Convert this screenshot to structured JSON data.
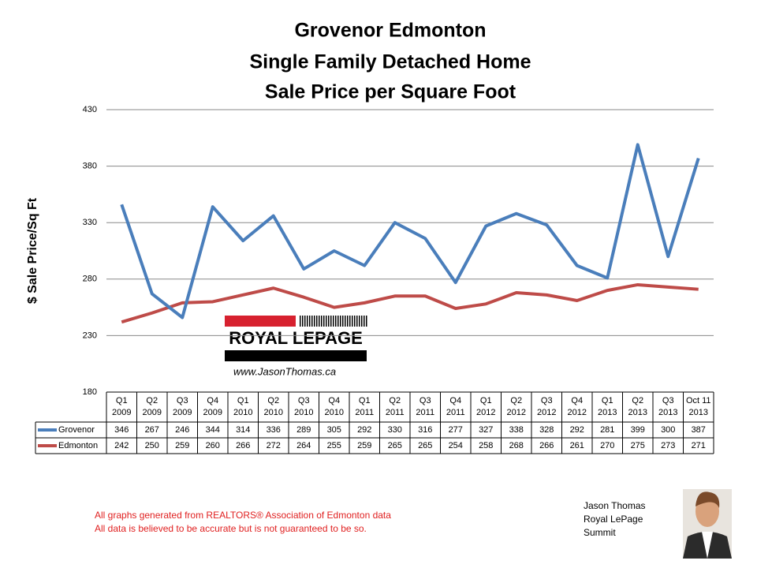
{
  "chart_data": {
    "type": "line",
    "title": [
      "Grovenor Edmonton",
      "Single Family Detached Home",
      "Sale Price per Square Foot"
    ],
    "y_label": "$ Sale Price/Sq Ft",
    "categories": [
      [
        "Q1",
        "2009"
      ],
      [
        "Q2",
        "2009"
      ],
      [
        "Q3",
        "2009"
      ],
      [
        "Q4",
        "2009"
      ],
      [
        "Q1",
        "2010"
      ],
      [
        "Q2",
        "2010"
      ],
      [
        "Q3",
        "2010"
      ],
      [
        "Q4",
        "2010"
      ],
      [
        "Q1",
        "2011"
      ],
      [
        "Q2",
        "2011"
      ],
      [
        "Q3",
        "2011"
      ],
      [
        "Q4",
        "2011"
      ],
      [
        "Q1",
        "2012"
      ],
      [
        "Q2",
        "2012"
      ],
      [
        "Q3",
        "2012"
      ],
      [
        "Q4",
        "2012"
      ],
      [
        "Q1",
        "2013"
      ],
      [
        "Q2",
        "2013"
      ],
      [
        "Q3",
        "2013"
      ],
      [
        "Oct 11",
        "2013"
      ]
    ],
    "series": [
      {
        "name": "Grovenor",
        "color": "#4a7ebb",
        "values": [
          346,
          267,
          246,
          344,
          314,
          336,
          289,
          305,
          292,
          330,
          316,
          277,
          327,
          338,
          328,
          292,
          281,
          399,
          300,
          387
        ]
      },
      {
        "name": "Edmonton",
        "color": "#be4b48",
        "values": [
          242,
          250,
          259,
          260,
          266,
          272,
          264,
          255,
          259,
          265,
          265,
          254,
          258,
          268,
          266,
          261,
          270,
          275,
          273,
          271
        ]
      }
    ],
    "ylim": [
      180,
      430
    ],
    "yticks": [
      180,
      230,
      280,
      330,
      380,
      430
    ],
    "grid": true
  },
  "logo": {
    "brand": "ROYAL LEPAGE",
    "url": "www.JasonThomas.ca"
  },
  "footer": [
    "All graphs generated from REALTORS® Association of Edmonton data",
    "All data is believed to be accurate but is not guaranteed to be so."
  ],
  "agent": [
    "Jason Thomas",
    "Royal LePage",
    "Summit"
  ]
}
